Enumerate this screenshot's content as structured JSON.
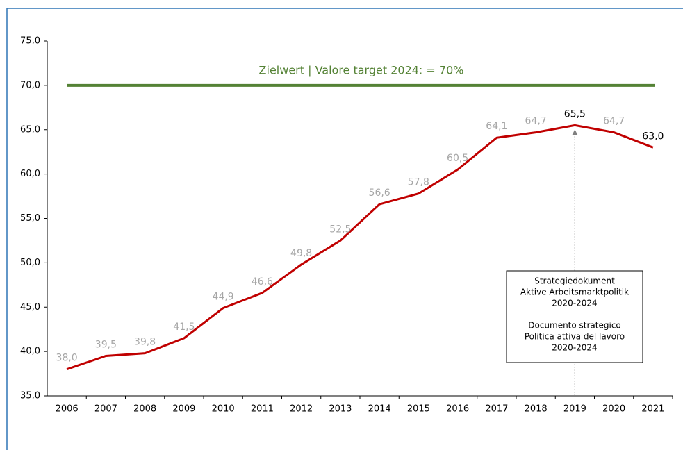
{
  "chart_data": {
    "type": "line",
    "categories": [
      "2006",
      "2007",
      "2008",
      "2009",
      "2010",
      "2011",
      "2012",
      "2013",
      "2014",
      "2015",
      "2016",
      "2017",
      "2018",
      "2019",
      "2020",
      "2021"
    ],
    "values": [
      38.0,
      39.5,
      39.8,
      41.5,
      44.9,
      46.6,
      49.8,
      52.5,
      56.6,
      57.8,
      60.5,
      64.1,
      64.7,
      65.5,
      64.7,
      63.0
    ],
    "value_labels": [
      "38,0",
      "39,5",
      "39,8",
      "41,5",
      "44,9",
      "46,6",
      "49,8",
      "52,5",
      "56,6",
      "57,8",
      "60,5",
      "64,1",
      "64,7",
      "65,5",
      "64,7",
      "63,0"
    ],
    "value_label_colors": [
      "#a6a6a6",
      "#a6a6a6",
      "#a6a6a6",
      "#a6a6a6",
      "#a6a6a6",
      "#a6a6a6",
      "#a6a6a6",
      "#a6a6a6",
      "#a6a6a6",
      "#a6a6a6",
      "#a6a6a6",
      "#a6a6a6",
      "#a6a6a6",
      "#000000",
      "#a6a6a6",
      "#000000"
    ],
    "color": "#c00000",
    "ylim": [
      35,
      75
    ],
    "yticks": [
      {
        "value": 35,
        "label": "35,0"
      },
      {
        "value": 40,
        "label": "40,0"
      },
      {
        "value": 45,
        "label": "45,0"
      },
      {
        "value": 50,
        "label": "50,0"
      },
      {
        "value": 55,
        "label": "55,0"
      },
      {
        "value": 60,
        "label": "60,0"
      },
      {
        "value": 65,
        "label": "65,0"
      },
      {
        "value": 70,
        "label": "70,0"
      },
      {
        "value": 75,
        "label": "75,0"
      }
    ],
    "target": {
      "value": 70,
      "label": "Zielwert | Valore target 2024: = 70%",
      "color": "#548235"
    },
    "annotation": {
      "category": "2019",
      "lines": [
        "Strategiedokument",
        "Aktive Arbeitsmarktpolitik",
        "2020-2024",
        "Documento strategico",
        "Politica attiva del lavoro",
        "2020-2024"
      ]
    }
  }
}
